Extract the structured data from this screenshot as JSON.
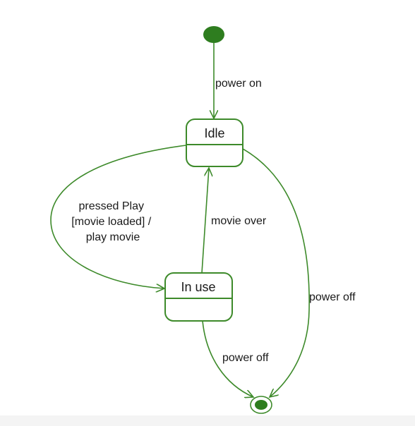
{
  "colors": {
    "stroke": "#3d8a2a",
    "fill": "#2e7d1f",
    "text": "#1a1a1a",
    "background": "#ffffff"
  },
  "states": {
    "idle": {
      "name": "Idle"
    },
    "in_use": {
      "name": "In use"
    }
  },
  "transitions": {
    "power_on": {
      "label": "power on"
    },
    "pressed_play": {
      "label_lines": [
        "pressed Play",
        "[movie loaded] /",
        "play movie"
      ]
    },
    "movie_over": {
      "label": "movie over"
    },
    "in_use_power_off": {
      "label": "power off"
    },
    "idle_power_off": {
      "label": "power off"
    }
  }
}
